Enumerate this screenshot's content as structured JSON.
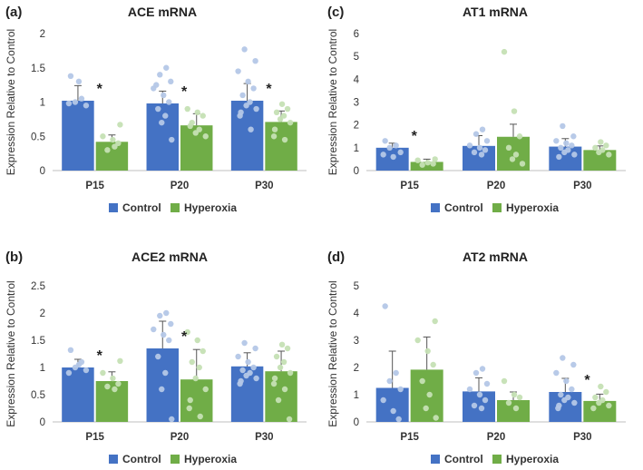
{
  "colors": {
    "control": "#4472C4",
    "hyperoxia": "#70AD47",
    "control_dot": "#B4C7E7",
    "hyperoxia_dot": "#C5E0B4",
    "axis": "#BFBFBF",
    "errorbar": "#555555"
  },
  "legend": {
    "control": "Control",
    "hyperoxia": "Hyperoxia"
  },
  "chart_data": [
    {
      "panel": "(a)",
      "title": "ACE mRNA",
      "type": "bar",
      "ylabel": "Expression Relative to Control",
      "ylim": [
        0,
        2
      ],
      "yticks": [
        "0",
        "0.5",
        "1",
        "1.5",
        "2"
      ],
      "categories": [
        "P15",
        "P20",
        "P30"
      ],
      "series": [
        {
          "name": "Control",
          "values": [
            1.02,
            0.98,
            1.02
          ],
          "errors": [
            0.22,
            0.18,
            0.25
          ],
          "points": [
            [
              1.38,
              1.05,
              1.0,
              0.95,
              0.98,
              1.3
            ],
            [
              1.5,
              1.4,
              1.3,
              1.2,
              1.1,
              1.0,
              0.9,
              0.8,
              0.7,
              0.45,
              1.25
            ],
            [
              1.77,
              1.6,
              1.45,
              1.3,
              1.2,
              1.1,
              1.0,
              0.95,
              0.9,
              0.85,
              0.8,
              0.6
            ]
          ]
        },
        {
          "name": "Hyperoxia",
          "values": [
            0.42,
            0.66,
            0.71
          ],
          "errors": [
            0.1,
            0.17,
            0.16
          ],
          "points": [
            [
              0.67,
              0.5,
              0.45,
              0.4,
              0.3,
              0.35
            ],
            [
              0.9,
              0.85,
              0.8,
              0.7,
              0.6,
              0.55,
              0.5,
              0.65
            ],
            [
              0.97,
              0.9,
              0.85,
              0.8,
              0.75,
              0.7,
              0.6,
              0.5,
              0.45
            ]
          ]
        }
      ],
      "significance": [
        "*",
        "*",
        "*"
      ]
    },
    {
      "panel": "(c)",
      "title": "AT1 mRNA",
      "type": "bar",
      "ylabel": "Expression Relative to Control",
      "ylim": [
        0,
        6
      ],
      "yticks": [
        "0",
        "1",
        "2",
        "3",
        "4",
        "5",
        "6"
      ],
      "categories": [
        "P15",
        "P20",
        "P30"
      ],
      "series": [
        {
          "name": "Control",
          "values": [
            1.0,
            1.08,
            1.05
          ],
          "errors": [
            0.2,
            0.45,
            0.35
          ],
          "points": [
            [
              1.3,
              1.1,
              1.0,
              0.8,
              0.7,
              0.6
            ],
            [
              1.8,
              1.6,
              1.3,
              1.1,
              1.0,
              0.9,
              0.8,
              0.7
            ],
            [
              1.95,
              1.5,
              1.3,
              1.2,
              1.1,
              1.0,
              0.9,
              0.8,
              0.7,
              0.6
            ]
          ]
        },
        {
          "name": "Hyperoxia",
          "values": [
            0.38,
            1.48,
            0.9
          ],
          "errors": [
            0.12,
            0.55,
            0.18
          ],
          "points": [
            [
              0.5,
              0.45,
              0.35,
              0.3,
              0.25
            ],
            [
              5.2,
              2.6,
              1.5,
              1.0,
              0.7,
              0.5,
              0.3
            ],
            [
              1.25,
              1.1,
              1.0,
              0.9,
              0.8,
              0.7
            ]
          ]
        }
      ],
      "significance": [
        "*",
        "",
        ""
      ]
    },
    {
      "panel": "(b)",
      "title": "ACE2 mRNA",
      "type": "bar",
      "ylabel": "Expression Relative to Control",
      "ylim": [
        0,
        2.5
      ],
      "yticks": [
        "0",
        "0.5",
        "1",
        "1.5",
        "2",
        "2.5"
      ],
      "categories": [
        "P15",
        "P20",
        "P30"
      ],
      "series": [
        {
          "name": "Control",
          "values": [
            1.0,
            1.35,
            1.02
          ],
          "errors": [
            0.15,
            0.5,
            0.25
          ],
          "points": [
            [
              1.32,
              1.1,
              1.0,
              0.95,
              0.9,
              1.05
            ],
            [
              2.0,
              1.95,
              1.8,
              1.7,
              1.6,
              1.5,
              1.2,
              0.9,
              0.6,
              0.05
            ],
            [
              1.45,
              1.35,
              1.2,
              1.1,
              1.0,
              0.95,
              0.9,
              0.85,
              0.8,
              0.75,
              0.7
            ]
          ]
        },
        {
          "name": "Hyperoxia",
          "values": [
            0.75,
            0.78,
            0.93
          ],
          "errors": [
            0.17,
            0.55,
            0.37
          ],
          "points": [
            [
              1.12,
              0.9,
              0.8,
              0.7,
              0.65,
              0.6
            ],
            [
              1.65,
              1.5,
              1.3,
              1.1,
              1.0,
              0.8,
              0.6,
              0.4,
              0.25,
              0.1
            ],
            [
              1.42,
              1.35,
              1.2,
              1.1,
              1.0,
              0.9,
              0.8,
              0.7,
              0.6,
              0.4,
              0.05
            ]
          ]
        }
      ],
      "significance": [
        "*",
        "*",
        ""
      ]
    },
    {
      "panel": "(d)",
      "title": "AT2 mRNA",
      "type": "bar",
      "ylabel": "Expression Relative to Control",
      "ylim": [
        0,
        5
      ],
      "yticks": [
        "0",
        "1",
        "2",
        "3",
        "4",
        "5"
      ],
      "categories": [
        "P15",
        "P20",
        "P30"
      ],
      "series": [
        {
          "name": "Control",
          "values": [
            1.25,
            1.12,
            1.1
          ],
          "errors": [
            1.35,
            0.5,
            0.5
          ],
          "points": [
            [
              4.25,
              1.8,
              1.5,
              1.2,
              0.8,
              0.4,
              0.1
            ],
            [
              1.95,
              1.8,
              1.4,
              1.2,
              1.0,
              0.8,
              0.6,
              0.5
            ],
            [
              2.35,
              2.1,
              1.8,
              1.5,
              1.2,
              1.0,
              0.9,
              0.8,
              0.7,
              0.6,
              0.5
            ]
          ]
        },
        {
          "name": "Hyperoxia",
          "values": [
            1.92,
            0.8,
            0.77
          ],
          "errors": [
            1.2,
            0.3,
            0.25
          ],
          "points": [
            [
              3.7,
              3.0,
              2.6,
              2.1,
              1.5,
              1.0,
              0.5,
              0.15
            ],
            [
              1.5,
              1.0,
              0.9,
              0.7,
              0.5
            ],
            [
              1.3,
              1.1,
              0.9,
              0.8,
              0.7,
              0.6,
              0.5
            ]
          ]
        }
      ],
      "significance": [
        "",
        "",
        "*"
      ]
    }
  ]
}
